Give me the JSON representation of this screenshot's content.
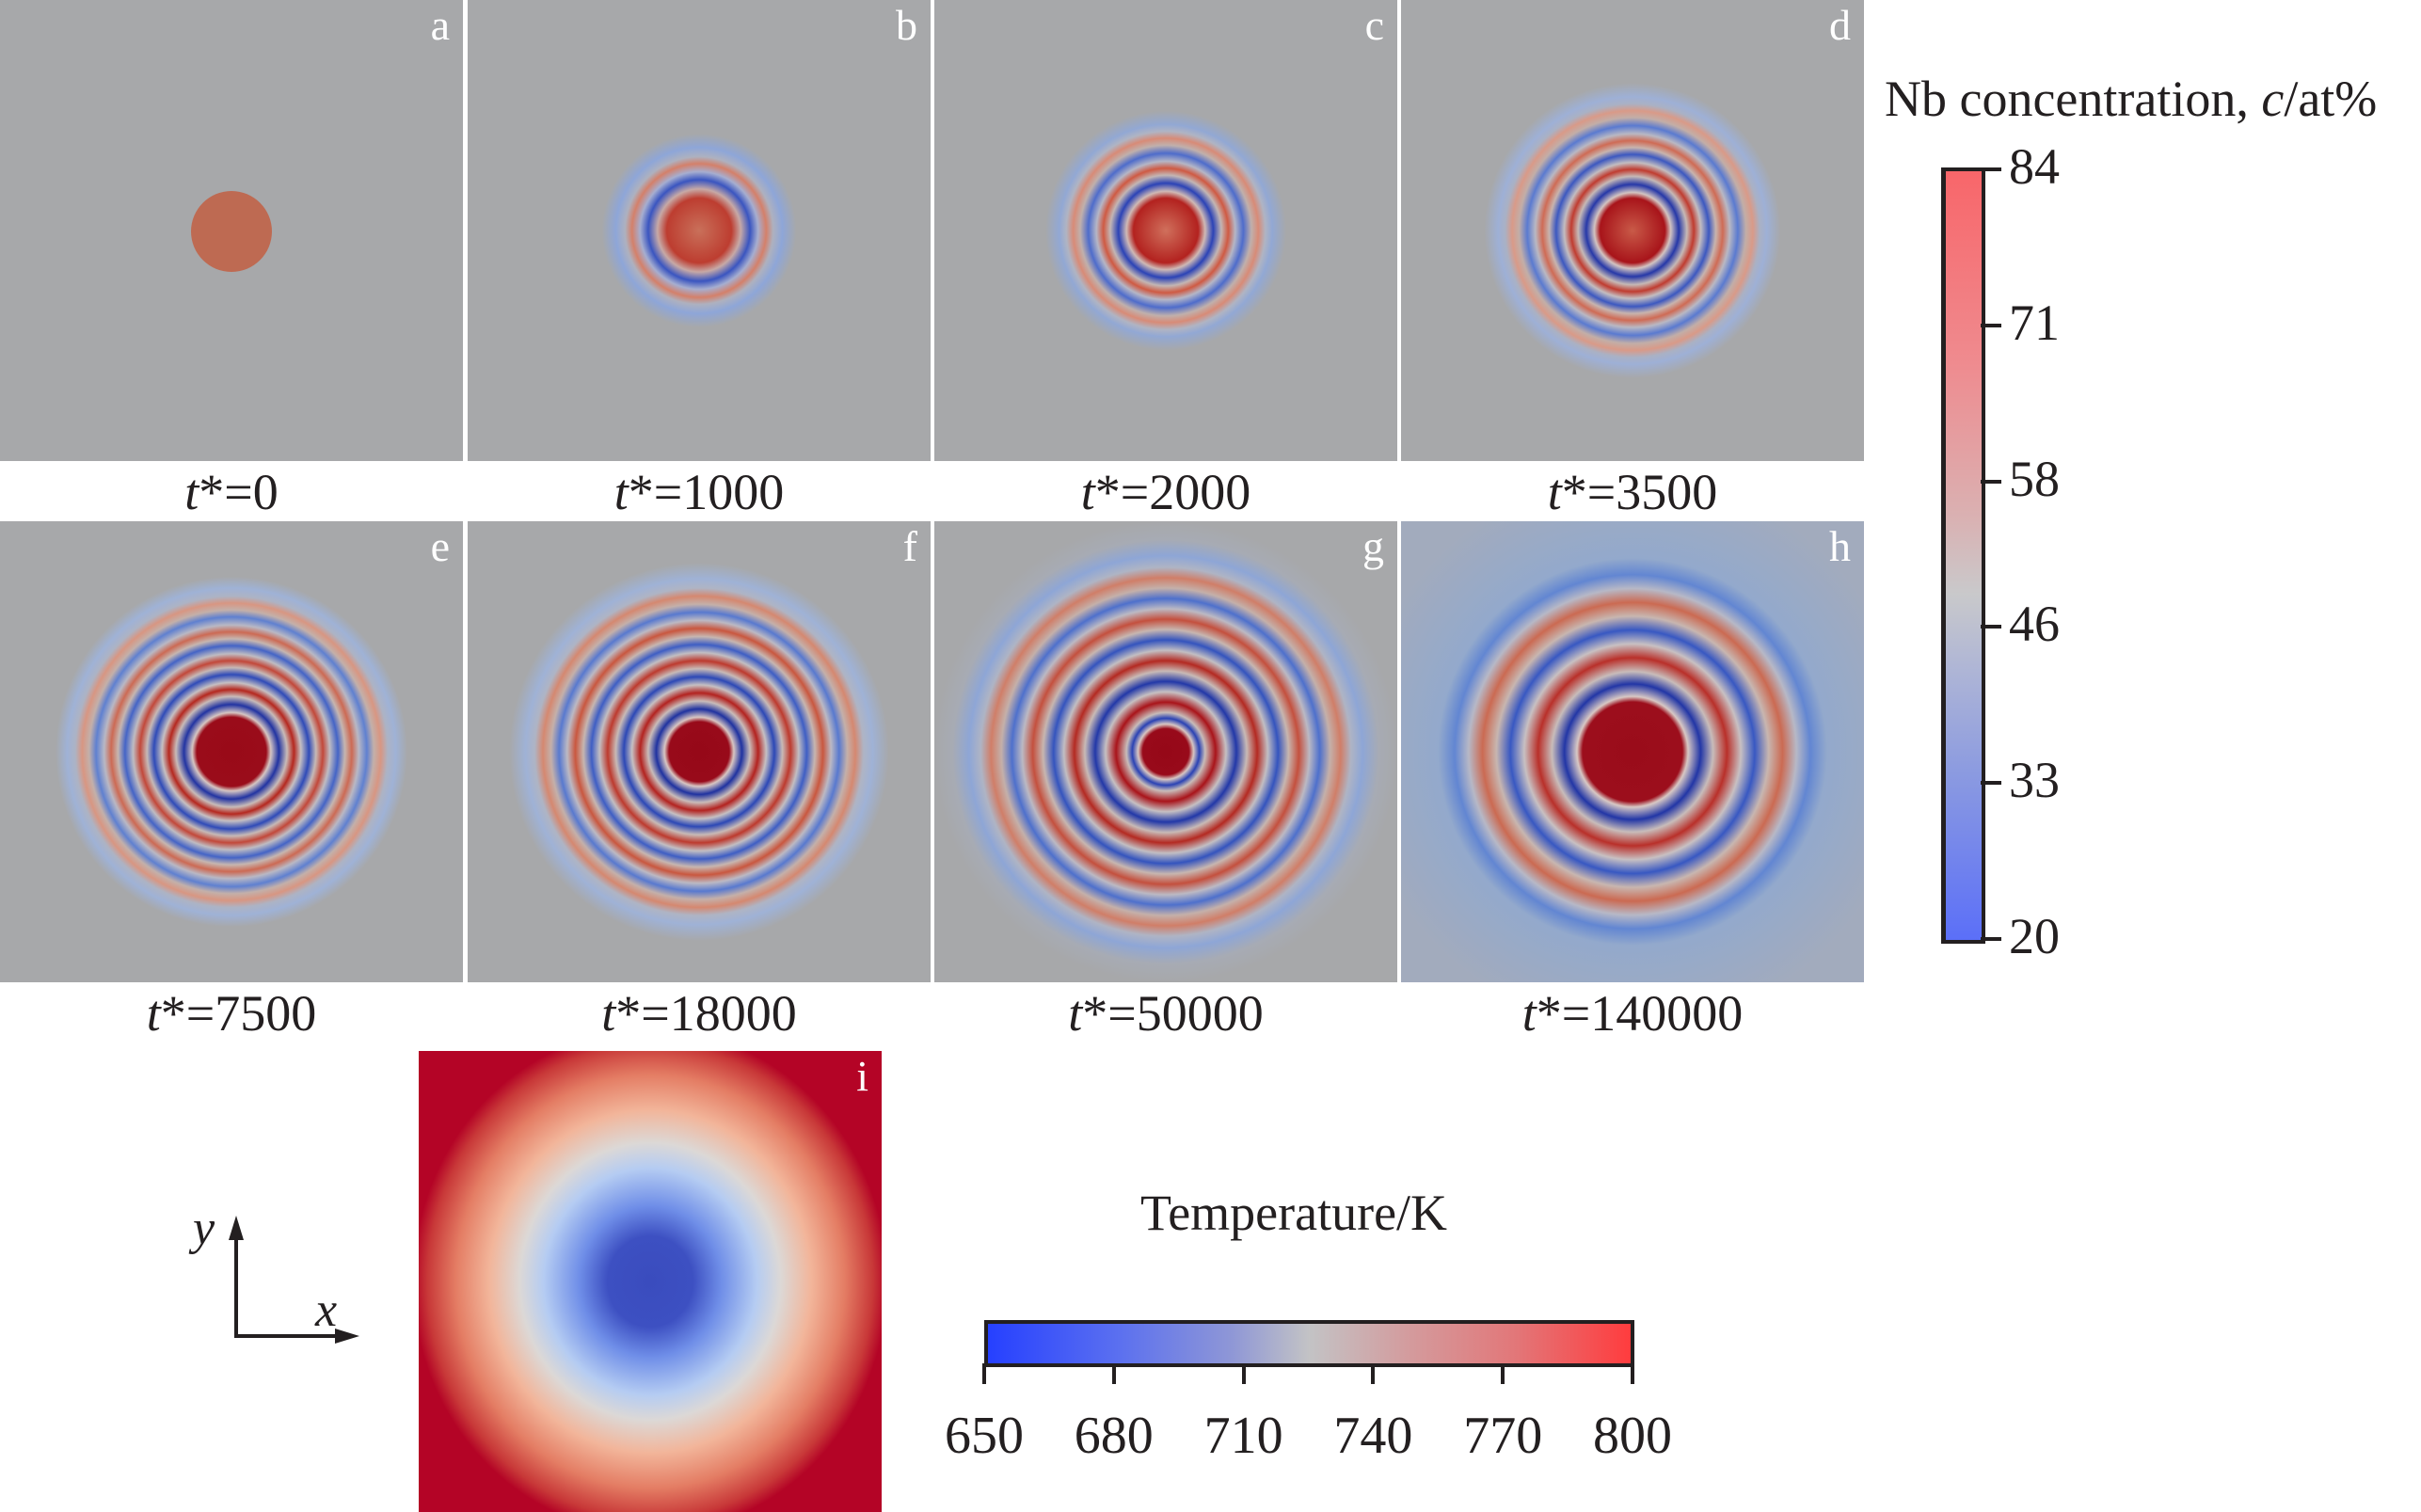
{
  "figure": {
    "panels": [
      {
        "letter": "a",
        "caption_var": "t",
        "caption_rest": "*=0",
        "time": 0
      },
      {
        "letter": "b",
        "caption_var": "t",
        "caption_rest": "*=1000",
        "time": 1000
      },
      {
        "letter": "c",
        "caption_var": "t",
        "caption_rest": "*=2000",
        "time": 2000
      },
      {
        "letter": "d",
        "caption_var": "t",
        "caption_rest": "*=3500",
        "time": 3500
      },
      {
        "letter": "e",
        "caption_var": "t",
        "caption_rest": "*=7500",
        "time": 7500
      },
      {
        "letter": "f",
        "caption_var": "t",
        "caption_rest": "*=18000",
        "time": 18000
      },
      {
        "letter": "g",
        "caption_var": "t",
        "caption_rest": "*=50000",
        "time": 50000
      },
      {
        "letter": "h",
        "caption_var": "t",
        "caption_rest": "*=140000",
        "time": 140000
      }
    ],
    "temperature_panel": {
      "letter": "i"
    },
    "axes": {
      "x": "x",
      "y": "y"
    },
    "concentration_colorbar": {
      "title_prefix": "Nb concentration, ",
      "title_var": "c",
      "title_unit": "/at%",
      "ticks": [
        "84",
        "71",
        "58",
        "46",
        "33",
        "20"
      ],
      "min": 20,
      "max": 84
    },
    "temperature_colorbar": {
      "title": "Temperature/K",
      "ticks": [
        "650",
        "680",
        "710",
        "740",
        "770",
        "800"
      ],
      "min": 650,
      "max": 800
    }
  },
  "colors": {
    "matrix_gray": "#a7a8aa",
    "high_red": "#a50f15",
    "low_blue": "#2c3fa8",
    "panel_label": "#ffffff"
  }
}
